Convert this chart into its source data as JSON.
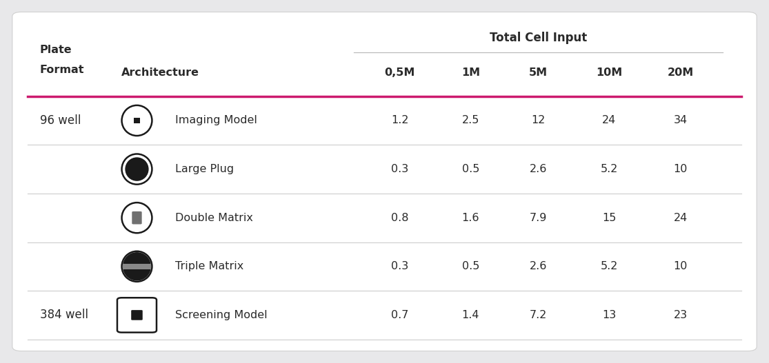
{
  "background_color": "#e8e8ea",
  "table_bg": "#ffffff",
  "header_line_color": "#cc1a6e",
  "divider_color": "#cccccc",
  "text_color": "#2a2a2a",
  "total_cell_input": "Total Cell Input",
  "cell_headers": [
    "0,5M",
    "1M",
    "5M",
    "10M",
    "20M"
  ],
  "rows": [
    {
      "plate_format": "96 well",
      "model_name": "Imaging Model",
      "icon_type": "imaging",
      "values": [
        "1.2",
        "2.5",
        "12",
        "24",
        "34"
      ],
      "group_start": true
    },
    {
      "plate_format": "",
      "model_name": "Large Plug",
      "icon_type": "large_plug",
      "values": [
        "0.3",
        "0.5",
        "2.6",
        "5.2",
        "10"
      ],
      "group_start": false
    },
    {
      "plate_format": "",
      "model_name": "Double Matrix",
      "icon_type": "double_matrix",
      "values": [
        "0.8",
        "1.6",
        "7.9",
        "15",
        "24"
      ],
      "group_start": false
    },
    {
      "plate_format": "",
      "model_name": "Triple Matrix",
      "icon_type": "triple_matrix",
      "values": [
        "0.3",
        "0.5",
        "2.6",
        "5.2",
        "10"
      ],
      "group_start": false
    },
    {
      "plate_format": "384 well",
      "model_name": "Screening Model",
      "icon_type": "screening",
      "values": [
        "0.7",
        "1.4",
        "7.2",
        "13",
        "23"
      ],
      "group_start": true
    }
  ],
  "figsize": [
    11.15,
    5.27
  ],
  "dpi": 100
}
